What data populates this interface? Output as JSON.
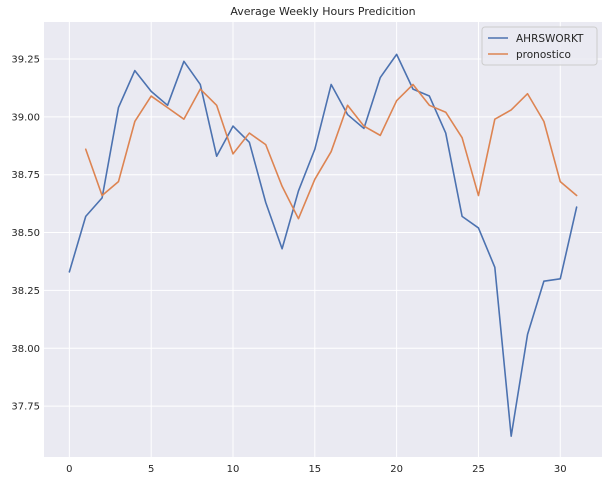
{
  "chart_data": {
    "type": "line",
    "title": "Average Weekly Hours Predicition",
    "xlabel": "",
    "ylabel": "",
    "xlim": [
      -1.55,
      32.55
    ],
    "ylim": [
      37.53,
      39.41
    ],
    "xticks": [
      0,
      5,
      10,
      15,
      20,
      25,
      30
    ],
    "yticks": [
      37.75,
      38.0,
      38.25,
      38.5,
      38.75,
      39.0,
      39.25
    ],
    "ytick_labels": [
      "37.75",
      "38.00",
      "38.25",
      "38.50",
      "38.75",
      "39.00",
      "39.25"
    ],
    "grid": true,
    "legend_position": "top-right",
    "series": [
      {
        "name": "AHRSWORKT",
        "color": "#4c72b0",
        "x": [
          0,
          1,
          2,
          3,
          4,
          5,
          6,
          7,
          8,
          9,
          10,
          11,
          12,
          13,
          14,
          15,
          16,
          17,
          18,
          19,
          20,
          21,
          22,
          23,
          24,
          25,
          26,
          27,
          28,
          29,
          30,
          31
        ],
        "values": [
          38.33,
          38.57,
          38.65,
          39.04,
          39.2,
          39.11,
          39.05,
          39.24,
          39.14,
          38.83,
          38.96,
          38.89,
          38.63,
          38.43,
          38.68,
          38.86,
          39.14,
          39.01,
          38.95,
          39.17,
          39.27,
          39.12,
          39.09,
          38.93,
          38.57,
          38.52,
          38.35,
          37.62,
          38.06,
          38.29,
          38.3,
          38.61
        ]
      },
      {
        "name": "pronostico",
        "color": "#dd8452",
        "x": [
          1,
          2,
          3,
          4,
          5,
          6,
          7,
          8,
          9,
          10,
          11,
          12,
          13,
          14,
          15,
          16,
          17,
          18,
          19,
          20,
          21,
          22,
          23,
          24,
          25,
          26,
          27,
          28,
          29,
          30,
          31
        ],
        "values": [
          38.86,
          38.66,
          38.72,
          38.98,
          39.09,
          39.04,
          38.99,
          39.12,
          39.05,
          38.84,
          38.93,
          38.88,
          38.7,
          38.56,
          38.73,
          38.85,
          39.05,
          38.96,
          38.92,
          39.07,
          39.14,
          39.05,
          39.02,
          38.91,
          38.66,
          38.99,
          39.03,
          39.1,
          38.98,
          38.72,
          38.66
        ]
      }
    ]
  }
}
